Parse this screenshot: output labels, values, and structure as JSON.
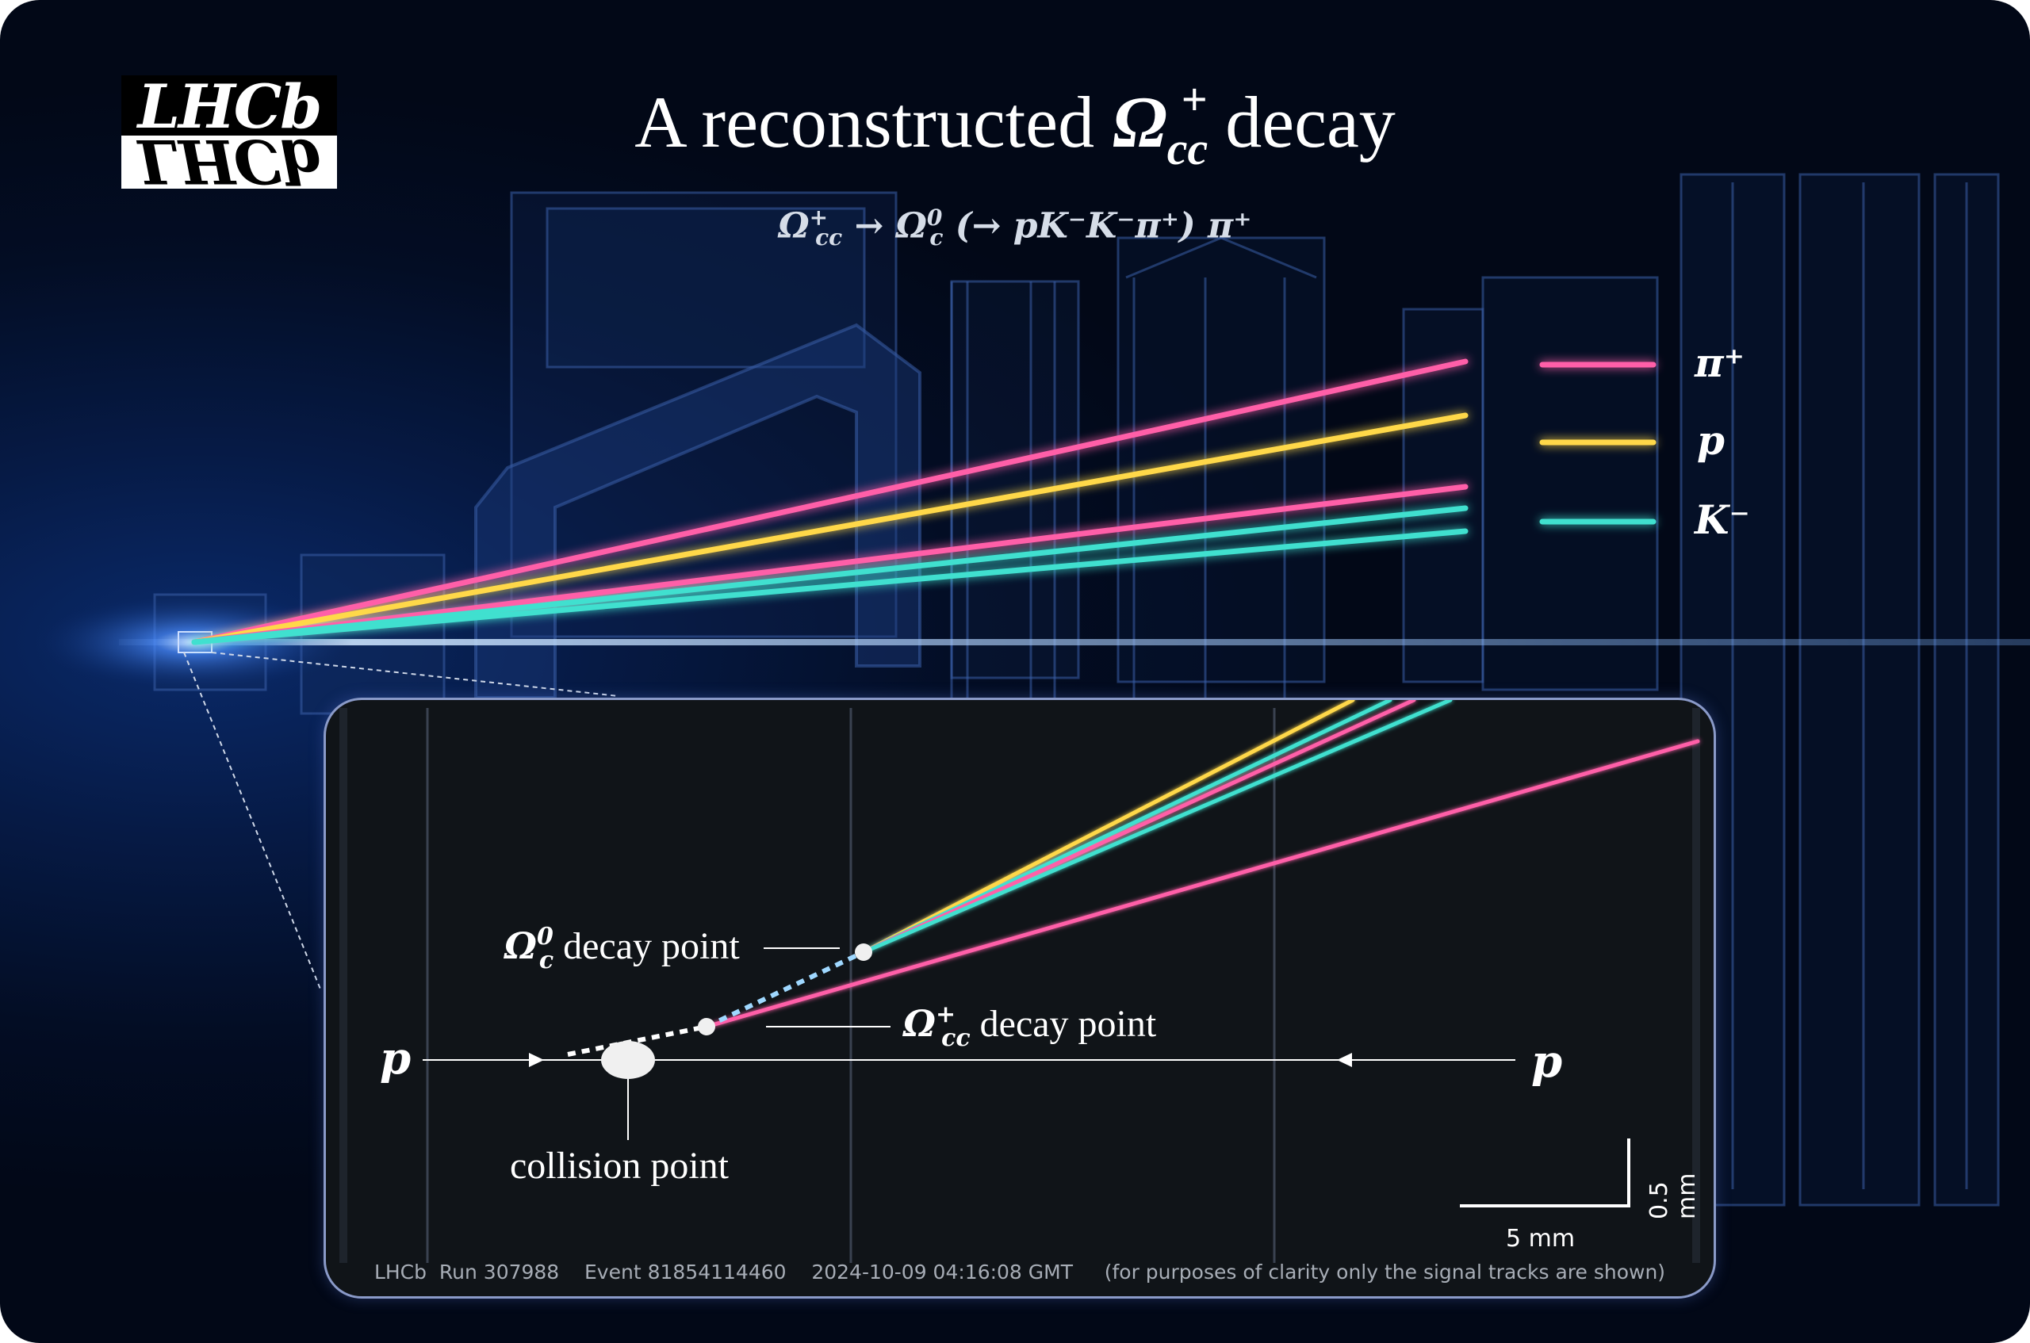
{
  "logo": {
    "text": "LHCb"
  },
  "title": {
    "prefix": "A reconstructed ",
    "symbol": "Ω",
    "sub": "cc",
    "sup": "+",
    "suffix": " decay"
  },
  "formula": "Ω⁺꜀꜀ → Ω⁰꜀ (→ pK⁻K⁻π⁺) π⁺",
  "formula_parts": {
    "a": "Ω",
    "a_sup": "+",
    "a_sub": "cc",
    "arrow": " → ",
    "b": "Ω",
    "b_sup": "0",
    "b_sub": "c",
    "rest": " (→ pK⁻K⁻π⁺) π⁺"
  },
  "legend": [
    {
      "label": "π⁺",
      "color": "#ff5fa8"
    },
    {
      "label": "p",
      "color": "#ffd84a"
    },
    {
      "label": "K⁻",
      "color": "#3fe0cf"
    }
  ],
  "inset": {
    "omega_c_label": {
      "symbol": "Ω",
      "sup": "0",
      "sub": "c",
      "text": " decay point"
    },
    "omega_cc_label": {
      "symbol": "Ω",
      "sup": "+",
      "sub": "cc",
      "text": " decay point"
    },
    "collision_label": "collision point",
    "beam_left": "p",
    "beam_right": "p",
    "scale_x": "5 mm",
    "scale_y": "0.5 mm",
    "footer": "LHCb  Run 307988    Event 81854114460    2024-10-09 04:16:08 GMT     (for purposes of clarity only the signal tracks are shown)"
  },
  "colors": {
    "pion": "#ff5fa8",
    "proton": "#ffd84a",
    "kaon": "#3fe0cf",
    "background": "#030d24",
    "inset_bg": "#101418"
  }
}
